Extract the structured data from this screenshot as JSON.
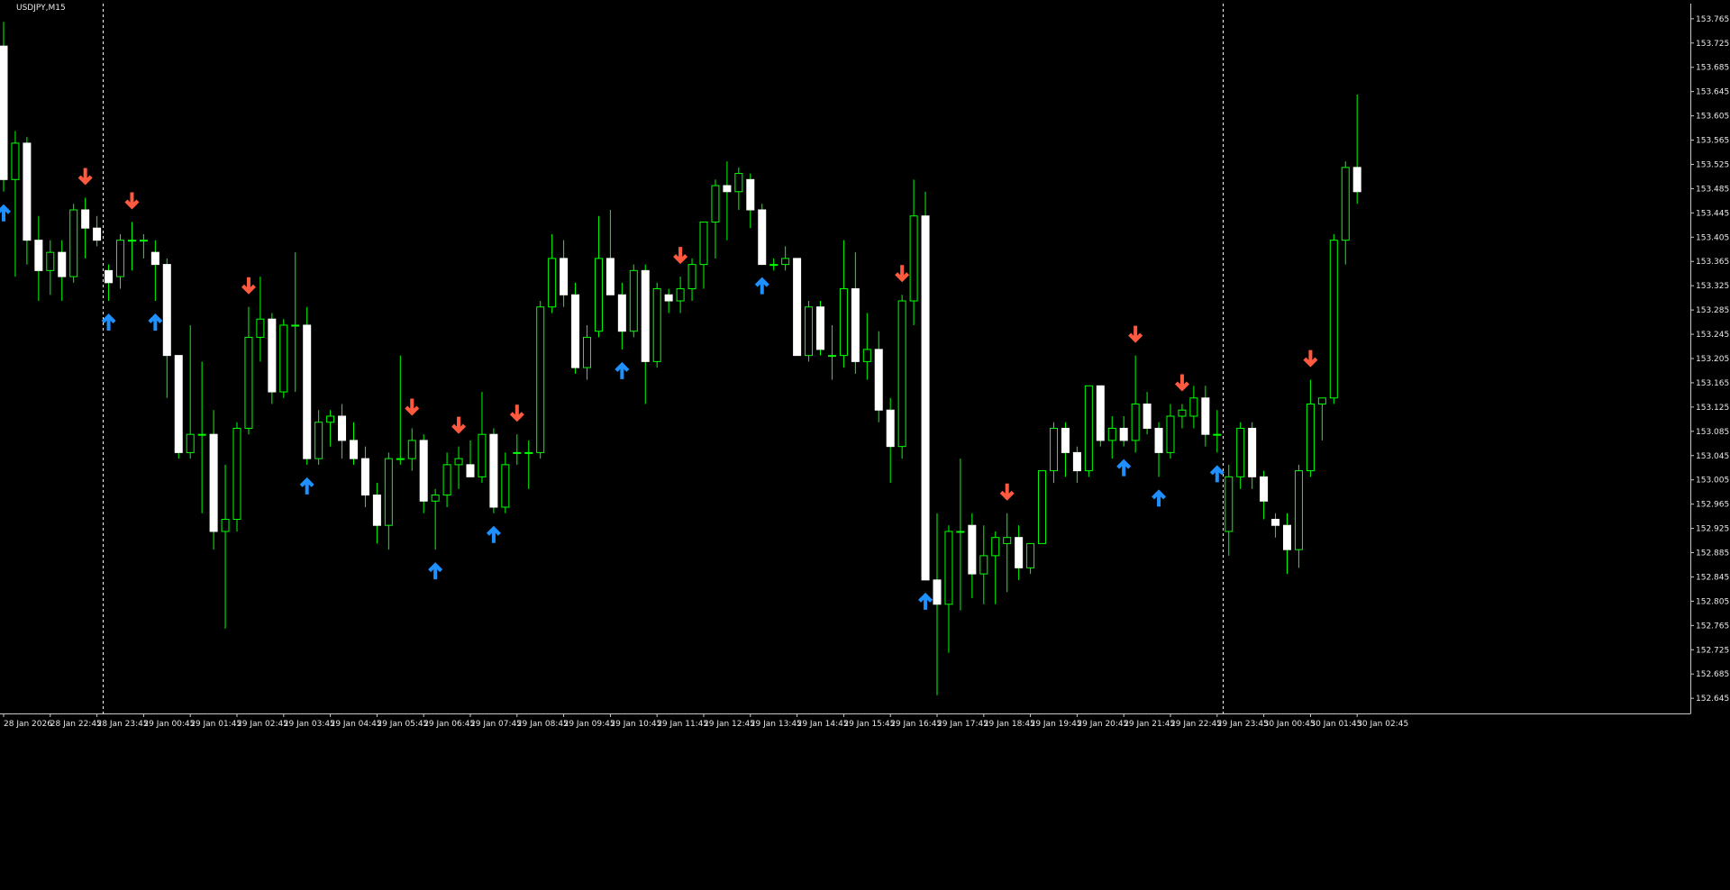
{
  "symbol_label": "USDJPY,M15",
  "colors": {
    "background": "#000000",
    "bull_outline": "#00ff00",
    "bull_fill": "#000000",
    "bear_fill": "#ffffff",
    "wick": "#00ff00",
    "buy_arrow": "#1e90ff",
    "sell_arrow": "#ff5a40",
    "axis": "#c8c8c8",
    "separator": "#ffffff"
  },
  "chart_data": {
    "type": "candlestick",
    "title": "USDJPY,M15",
    "ylim": [
      152.62,
      153.79
    ],
    "grid": false,
    "y_ticks": [
      "153.765",
      "153.725",
      "153.685",
      "153.645",
      "153.605",
      "153.565",
      "153.525",
      "153.485",
      "153.445",
      "153.405",
      "153.365",
      "153.325",
      "153.285",
      "153.245",
      "153.205",
      "153.165",
      "153.125",
      "153.085",
      "153.045",
      "153.005",
      "152.965",
      "152.925",
      "152.885",
      "152.845",
      "152.805",
      "152.765",
      "152.725",
      "152.685",
      "152.645"
    ],
    "x_ticks": [
      {
        "label": "28 Jan 2026",
        "i": 0
      },
      {
        "label": "28 Jan 22:45",
        "i": 4
      },
      {
        "label": "28 Jan 23:45",
        "i": 8
      },
      {
        "label": "29 Jan 00:45",
        "i": 12
      },
      {
        "label": "29 Jan 01:45",
        "i": 16
      },
      {
        "label": "29 Jan 02:45",
        "i": 20
      },
      {
        "label": "29 Jan 03:45",
        "i": 24
      },
      {
        "label": "29 Jan 04:45",
        "i": 28
      },
      {
        "label": "29 Jan 05:45",
        "i": 32
      },
      {
        "label": "29 Jan 06:45",
        "i": 36
      },
      {
        "label": "29 Jan 07:45",
        "i": 40
      },
      {
        "label": "29 Jan 08:45",
        "i": 44
      },
      {
        "label": "29 Jan 09:45",
        "i": 48
      },
      {
        "label": "29 Jan 10:45",
        "i": 52
      },
      {
        "label": "29 Jan 11:45",
        "i": 56
      },
      {
        "label": "29 Jan 12:45",
        "i": 60
      },
      {
        "label": "29 Jan 13:45",
        "i": 64
      },
      {
        "label": "29 Jan 14:45",
        "i": 68
      },
      {
        "label": "29 Jan 15:45",
        "i": 72
      },
      {
        "label": "29 Jan 16:45",
        "i": 76
      },
      {
        "label": "29 Jan 17:45",
        "i": 80
      },
      {
        "label": "29 Jan 18:45",
        "i": 84
      },
      {
        "label": "29 Jan 19:45",
        "i": 88
      },
      {
        "label": "29 Jan 20:45",
        "i": 92
      },
      {
        "label": "29 Jan 21:45",
        "i": 96
      },
      {
        "label": "29 Jan 22:45",
        "i": 100
      },
      {
        "label": "29 Jan 23:45",
        "i": 104
      },
      {
        "label": "30 Jan 00:45",
        "i": 108
      },
      {
        "label": "30 Jan 01:45",
        "i": 112
      },
      {
        "label": "30 Jan 02:45",
        "i": 116
      }
    ],
    "separators_at": [
      8.5,
      104.5
    ],
    "candles": [
      {
        "o": 153.72,
        "h": 153.76,
        "l": 153.48,
        "c": 153.5
      },
      {
        "o": 153.5,
        "h": 153.58,
        "l": 153.34,
        "c": 153.56
      },
      {
        "o": 153.56,
        "h": 153.57,
        "l": 153.36,
        "c": 153.4
      },
      {
        "o": 153.4,
        "h": 153.44,
        "l": 153.3,
        "c": 153.35
      },
      {
        "o": 153.35,
        "h": 153.4,
        "l": 153.31,
        "c": 153.38
      },
      {
        "o": 153.38,
        "h": 153.4,
        "l": 153.3,
        "c": 153.34
      },
      {
        "o": 153.34,
        "h": 153.46,
        "l": 153.33,
        "c": 153.45
      },
      {
        "o": 153.45,
        "h": 153.47,
        "l": 153.37,
        "c": 153.42
      },
      {
        "o": 153.42,
        "h": 153.44,
        "l": 153.39,
        "c": 153.4
      },
      {
        "o": 153.35,
        "h": 153.36,
        "l": 153.3,
        "c": 153.33
      },
      {
        "o": 153.34,
        "h": 153.41,
        "l": 153.32,
        "c": 153.4
      },
      {
        "o": 153.4,
        "h": 153.43,
        "l": 153.35,
        "c": 153.4
      },
      {
        "o": 153.4,
        "h": 153.41,
        "l": 153.37,
        "c": 153.4
      },
      {
        "o": 153.38,
        "h": 153.4,
        "l": 153.3,
        "c": 153.36
      },
      {
        "o": 153.36,
        "h": 153.37,
        "l": 153.14,
        "c": 153.21
      },
      {
        "o": 153.21,
        "h": 153.21,
        "l": 153.04,
        "c": 153.05
      },
      {
        "o": 153.05,
        "h": 153.26,
        "l": 153.04,
        "c": 153.08
      },
      {
        "o": 153.08,
        "h": 153.2,
        "l": 152.95,
        "c": 153.08
      },
      {
        "o": 153.08,
        "h": 153.12,
        "l": 152.89,
        "c": 152.92
      },
      {
        "o": 152.92,
        "h": 153.03,
        "l": 152.76,
        "c": 152.94
      },
      {
        "o": 152.94,
        "h": 153.1,
        "l": 152.92,
        "c": 153.09
      },
      {
        "o": 153.09,
        "h": 153.29,
        "l": 153.08,
        "c": 153.24
      },
      {
        "o": 153.24,
        "h": 153.34,
        "l": 153.2,
        "c": 153.27
      },
      {
        "o": 153.27,
        "h": 153.28,
        "l": 153.13,
        "c": 153.15
      },
      {
        "o": 153.15,
        "h": 153.27,
        "l": 153.14,
        "c": 153.26
      },
      {
        "o": 153.26,
        "h": 153.38,
        "l": 153.15,
        "c": 153.26
      },
      {
        "o": 153.26,
        "h": 153.29,
        "l": 153.03,
        "c": 153.04
      },
      {
        "o": 153.04,
        "h": 153.12,
        "l": 153.03,
        "c": 153.1
      },
      {
        "o": 153.1,
        "h": 153.12,
        "l": 153.06,
        "c": 153.11
      },
      {
        "o": 153.11,
        "h": 153.13,
        "l": 153.04,
        "c": 153.07
      },
      {
        "o": 153.07,
        "h": 153.1,
        "l": 153.03,
        "c": 153.04
      },
      {
        "o": 153.04,
        "h": 153.06,
        "l": 152.96,
        "c": 152.98
      },
      {
        "o": 152.98,
        "h": 153.0,
        "l": 152.9,
        "c": 152.93
      },
      {
        "o": 152.93,
        "h": 153.05,
        "l": 152.89,
        "c": 153.04
      },
      {
        "o": 153.04,
        "h": 153.21,
        "l": 153.03,
        "c": 153.04
      },
      {
        "o": 153.04,
        "h": 153.09,
        "l": 153.02,
        "c": 153.07
      },
      {
        "o": 153.07,
        "h": 153.08,
        "l": 152.95,
        "c": 152.97
      },
      {
        "o": 152.97,
        "h": 152.99,
        "l": 152.89,
        "c": 152.98
      },
      {
        "o": 152.98,
        "h": 153.05,
        "l": 152.96,
        "c": 153.03
      },
      {
        "o": 153.03,
        "h": 153.06,
        "l": 152.99,
        "c": 153.04
      },
      {
        "o": 153.03,
        "h": 153.07,
        "l": 153.01,
        "c": 153.01
      },
      {
        "o": 153.01,
        "h": 153.15,
        "l": 153.0,
        "c": 153.08
      },
      {
        "o": 153.08,
        "h": 153.09,
        "l": 152.95,
        "c": 152.96
      },
      {
        "o": 152.96,
        "h": 153.05,
        "l": 152.95,
        "c": 153.03
      },
      {
        "o": 153.05,
        "h": 153.08,
        "l": 153.03,
        "c": 153.05
      },
      {
        "o": 153.05,
        "h": 153.07,
        "l": 152.99,
        "c": 153.05
      },
      {
        "o": 153.05,
        "h": 153.3,
        "l": 153.04,
        "c": 153.29
      },
      {
        "o": 153.29,
        "h": 153.41,
        "l": 153.28,
        "c": 153.37
      },
      {
        "o": 153.37,
        "h": 153.4,
        "l": 153.29,
        "c": 153.31
      },
      {
        "o": 153.31,
        "h": 153.33,
        "l": 153.18,
        "c": 153.19
      },
      {
        "o": 153.19,
        "h": 153.26,
        "l": 153.17,
        "c": 153.24
      },
      {
        "o": 153.25,
        "h": 153.44,
        "l": 153.24,
        "c": 153.37
      },
      {
        "o": 153.37,
        "h": 153.45,
        "l": 153.31,
        "c": 153.31
      },
      {
        "o": 153.31,
        "h": 153.33,
        "l": 153.22,
        "c": 153.25
      },
      {
        "o": 153.25,
        "h": 153.36,
        "l": 153.24,
        "c": 153.35
      },
      {
        "o": 153.35,
        "h": 153.36,
        "l": 153.13,
        "c": 153.2
      },
      {
        "o": 153.2,
        "h": 153.33,
        "l": 153.19,
        "c": 153.32
      },
      {
        "o": 153.31,
        "h": 153.32,
        "l": 153.28,
        "c": 153.3
      },
      {
        "o": 153.3,
        "h": 153.34,
        "l": 153.28,
        "c": 153.32
      },
      {
        "o": 153.32,
        "h": 153.37,
        "l": 153.3,
        "c": 153.36
      },
      {
        "o": 153.36,
        "h": 153.43,
        "l": 153.32,
        "c": 153.43
      },
      {
        "o": 153.43,
        "h": 153.5,
        "l": 153.37,
        "c": 153.49
      },
      {
        "o": 153.49,
        "h": 153.53,
        "l": 153.4,
        "c": 153.48
      },
      {
        "o": 153.48,
        "h": 153.52,
        "l": 153.45,
        "c": 153.51
      },
      {
        "o": 153.5,
        "h": 153.51,
        "l": 153.42,
        "c": 153.45
      },
      {
        "o": 153.45,
        "h": 153.46,
        "l": 153.36,
        "c": 153.36
      },
      {
        "o": 153.36,
        "h": 153.37,
        "l": 153.35,
        "c": 153.36
      },
      {
        "o": 153.36,
        "h": 153.39,
        "l": 153.35,
        "c": 153.37
      },
      {
        "o": 153.37,
        "h": 153.37,
        "l": 153.21,
        "c": 153.21
      },
      {
        "o": 153.21,
        "h": 153.3,
        "l": 153.2,
        "c": 153.29
      },
      {
        "o": 153.29,
        "h": 153.3,
        "l": 153.21,
        "c": 153.22
      },
      {
        "o": 153.21,
        "h": 153.26,
        "l": 153.17,
        "c": 153.21
      },
      {
        "o": 153.21,
        "h": 153.4,
        "l": 153.19,
        "c": 153.32
      },
      {
        "o": 153.32,
        "h": 153.38,
        "l": 153.18,
        "c": 153.2
      },
      {
        "o": 153.2,
        "h": 153.28,
        "l": 153.17,
        "c": 153.22
      },
      {
        "o": 153.22,
        "h": 153.25,
        "l": 153.1,
        "c": 153.12
      },
      {
        "o": 153.12,
        "h": 153.14,
        "l": 153.0,
        "c": 153.06
      },
      {
        "o": 153.06,
        "h": 153.31,
        "l": 153.04,
        "c": 153.3
      },
      {
        "o": 153.3,
        "h": 153.5,
        "l": 153.26,
        "c": 153.44
      },
      {
        "o": 153.44,
        "h": 153.48,
        "l": 152.84,
        "c": 152.84
      },
      {
        "o": 152.84,
        "h": 152.95,
        "l": 152.65,
        "c": 152.8
      },
      {
        "o": 152.8,
        "h": 152.93,
        "l": 152.72,
        "c": 152.92
      },
      {
        "o": 152.92,
        "h": 153.04,
        "l": 152.79,
        "c": 152.92
      },
      {
        "o": 152.93,
        "h": 152.95,
        "l": 152.81,
        "c": 152.85
      },
      {
        "o": 152.85,
        "h": 152.93,
        "l": 152.8,
        "c": 152.88
      },
      {
        "o": 152.88,
        "h": 152.92,
        "l": 152.8,
        "c": 152.91
      },
      {
        "o": 152.9,
        "h": 152.95,
        "l": 152.82,
        "c": 152.91
      },
      {
        "o": 152.91,
        "h": 152.93,
        "l": 152.84,
        "c": 152.86
      },
      {
        "o": 152.86,
        "h": 152.9,
        "l": 152.85,
        "c": 152.9
      },
      {
        "o": 152.9,
        "h": 153.02,
        "l": 152.9,
        "c": 153.02
      },
      {
        "o": 153.02,
        "h": 153.1,
        "l": 153.0,
        "c": 153.09
      },
      {
        "o": 153.09,
        "h": 153.1,
        "l": 153.01,
        "c": 153.05
      },
      {
        "o": 153.05,
        "h": 153.06,
        "l": 153.0,
        "c": 153.02
      },
      {
        "o": 153.02,
        "h": 153.16,
        "l": 153.01,
        "c": 153.16
      },
      {
        "o": 153.16,
        "h": 153.16,
        "l": 153.06,
        "c": 153.07
      },
      {
        "o": 153.07,
        "h": 153.11,
        "l": 153.04,
        "c": 153.09
      },
      {
        "o": 153.09,
        "h": 153.11,
        "l": 153.06,
        "c": 153.07
      },
      {
        "o": 153.07,
        "h": 153.21,
        "l": 153.05,
        "c": 153.13
      },
      {
        "o": 153.13,
        "h": 153.15,
        "l": 153.08,
        "c": 153.09
      },
      {
        "o": 153.09,
        "h": 153.1,
        "l": 153.01,
        "c": 153.05
      },
      {
        "o": 153.05,
        "h": 153.13,
        "l": 153.04,
        "c": 153.11
      },
      {
        "o": 153.11,
        "h": 153.13,
        "l": 153.09,
        "c": 153.12
      },
      {
        "o": 153.11,
        "h": 153.16,
        "l": 153.09,
        "c": 153.14
      },
      {
        "o": 153.14,
        "h": 153.16,
        "l": 153.06,
        "c": 153.08
      },
      {
        "o": 153.08,
        "h": 153.12,
        "l": 153.05,
        "c": 153.08
      },
      {
        "o": 152.92,
        "h": 153.03,
        "l": 152.88,
        "c": 153.01
      },
      {
        "o": 153.01,
        "h": 153.1,
        "l": 152.99,
        "c": 153.09
      },
      {
        "o": 153.09,
        "h": 153.1,
        "l": 152.99,
        "c": 153.01
      },
      {
        "o": 153.01,
        "h": 153.02,
        "l": 152.94,
        "c": 152.97
      },
      {
        "o": 152.94,
        "h": 152.95,
        "l": 152.91,
        "c": 152.93
      },
      {
        "o": 152.93,
        "h": 152.95,
        "l": 152.85,
        "c": 152.89
      },
      {
        "o": 152.89,
        "h": 153.03,
        "l": 152.86,
        "c": 153.02
      },
      {
        "o": 153.02,
        "h": 153.17,
        "l": 153.01,
        "c": 153.13
      },
      {
        "o": 153.13,
        "h": 153.14,
        "l": 153.07,
        "c": 153.14
      },
      {
        "o": 153.14,
        "h": 153.41,
        "l": 153.13,
        "c": 153.4
      },
      {
        "o": 153.4,
        "h": 153.53,
        "l": 153.36,
        "c": 153.52
      },
      {
        "o": 153.52,
        "h": 153.64,
        "l": 153.46,
        "c": 153.48
      }
    ],
    "arrows": [
      {
        "i": 0,
        "dir": "up"
      },
      {
        "i": 7,
        "dir": "down"
      },
      {
        "i": 9,
        "dir": "up"
      },
      {
        "i": 11,
        "dir": "down"
      },
      {
        "i": 13,
        "dir": "up"
      },
      {
        "i": 21,
        "dir": "down"
      },
      {
        "i": 26,
        "dir": "up"
      },
      {
        "i": 35,
        "dir": "down"
      },
      {
        "i": 37,
        "dir": "up"
      },
      {
        "i": 39,
        "dir": "down"
      },
      {
        "i": 42,
        "dir": "up"
      },
      {
        "i": 44,
        "dir": "down"
      },
      {
        "i": 53,
        "dir": "up"
      },
      {
        "i": 58,
        "dir": "down"
      },
      {
        "i": 65,
        "dir": "up"
      },
      {
        "i": 77,
        "dir": "down"
      },
      {
        "i": 79,
        "dir": "up"
      },
      {
        "i": 86,
        "dir": "down"
      },
      {
        "i": 96,
        "dir": "up"
      },
      {
        "i": 97,
        "dir": "down"
      },
      {
        "i": 99,
        "dir": "up"
      },
      {
        "i": 101,
        "dir": "down"
      },
      {
        "i": 104,
        "dir": "up"
      },
      {
        "i": 112,
        "dir": "down"
      }
    ]
  }
}
